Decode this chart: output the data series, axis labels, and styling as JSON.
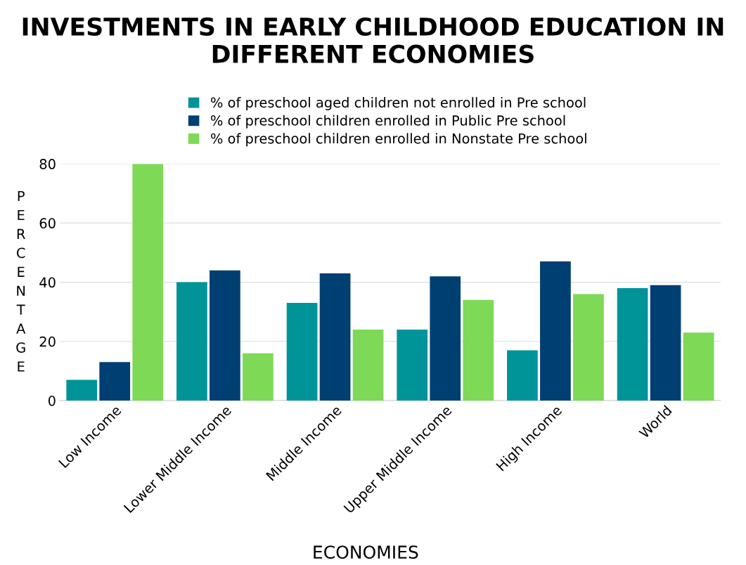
{
  "chart_data": {
    "type": "bar",
    "title": "INVESTMENTS IN EARLY CHILDHOOD EDUCATION IN DIFFERENT ECONOMIES",
    "xlabel": "ECONOMIES",
    "ylabel": "PERCENTAGE",
    "categories": [
      "Low Income",
      "Lower Middle Income",
      "Middle Income",
      "Upper Middle Income",
      "High Income",
      "World"
    ],
    "series": [
      {
        "name": "% of preschool aged children not enrolled in Pre school",
        "color": "#009499",
        "values": [
          7,
          40,
          33,
          24,
          17,
          38
        ]
      },
      {
        "name": "% of preschool children enrolled in Public Pre school",
        "color": "#003f72",
        "values": [
          13,
          44,
          43,
          42,
          47,
          39
        ]
      },
      {
        "name": "% of preschool children enrolled in Nonstate Pre school",
        "color": "#7ed957",
        "values": [
          80,
          16,
          24,
          34,
          36,
          23
        ]
      }
    ],
    "ylim": [
      0,
      80
    ],
    "yticks": [
      0,
      20,
      40,
      60,
      80
    ],
    "grid": "y",
    "legend": "top"
  }
}
